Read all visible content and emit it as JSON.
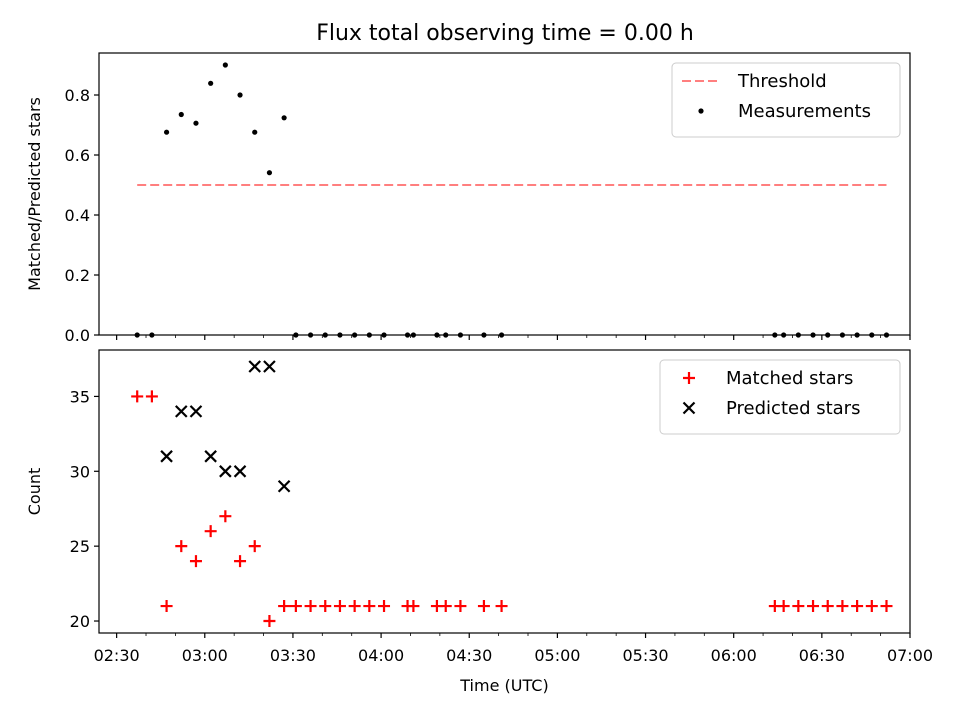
{
  "figure": {
    "title": "Flux total observing time = 0.00 h"
  },
  "chart_data": [
    {
      "type": "scatter",
      "ylabel": "Matched/Predicted stars",
      "xlabel": "",
      "xlim": [
        "02:24",
        "07:00"
      ],
      "ylim": [
        0,
        0.94
      ],
      "yticks": [
        0.0,
        0.2,
        0.4,
        0.6,
        0.8
      ],
      "ytick_labels": [
        "0.0",
        "0.2",
        "0.4",
        "0.6",
        "0.8"
      ],
      "xticks": [
        "02:30",
        "03:00",
        "03:30",
        "04:00",
        "04:30",
        "05:00",
        "05:30",
        "06:00",
        "06:30",
        "07:00"
      ],
      "show_xtick_labels": false,
      "legend_position": "upper right",
      "threshold": {
        "name": "Threshold",
        "color": "#ff7f7f",
        "style": "dashed",
        "value": 0.5,
        "x_range": [
          "02:37",
          "06:52"
        ]
      },
      "series": [
        {
          "name": "Measurements",
          "marker": "dot",
          "color": "#000000",
          "points": [
            [
              "02:37",
              0.0
            ],
            [
              "02:42",
              0.0
            ],
            [
              "02:47",
              0.676
            ],
            [
              "02:52",
              0.735
            ],
            [
              "02:57",
              0.706
            ],
            [
              "03:02",
              0.839
            ],
            [
              "03:07",
              0.9
            ],
            [
              "03:12",
              0.8
            ],
            [
              "03:17",
              0.676
            ],
            [
              "03:22",
              0.541
            ],
            [
              "03:27",
              0.724
            ],
            [
              "03:31",
              0.0
            ],
            [
              "03:36",
              0.0
            ],
            [
              "03:41",
              0.0
            ],
            [
              "03:46",
              0.0
            ],
            [
              "03:51",
              0.0
            ],
            [
              "03:56",
              0.0
            ],
            [
              "04:01",
              0.0
            ],
            [
              "04:09",
              0.0
            ],
            [
              "04:11",
              0.0
            ],
            [
              "04:19",
              0.0
            ],
            [
              "04:22",
              0.0
            ],
            [
              "04:27",
              0.0
            ],
            [
              "04:35",
              0.0
            ],
            [
              "04:41",
              0.0
            ],
            [
              "06:14",
              0.0
            ],
            [
              "06:17",
              0.0
            ],
            [
              "06:22",
              0.0
            ],
            [
              "06:27",
              0.0
            ],
            [
              "06:32",
              0.0
            ],
            [
              "06:37",
              0.0
            ],
            [
              "06:42",
              0.0
            ],
            [
              "06:47",
              0.0
            ],
            [
              "06:52",
              0.0
            ]
          ]
        }
      ]
    },
    {
      "type": "scatter",
      "ylabel": "Count",
      "xlabel": "Time (UTC)",
      "xlim": [
        "02:24",
        "07:00"
      ],
      "ylim": [
        19.2,
        38.1
      ],
      "yticks": [
        20,
        25,
        30,
        35
      ],
      "ytick_labels": [
        "20",
        "25",
        "30",
        "35"
      ],
      "xticks": [
        "02:30",
        "03:00",
        "03:30",
        "04:00",
        "04:30",
        "05:00",
        "05:30",
        "06:00",
        "06:30",
        "07:00"
      ],
      "xtick_labels": [
        "02:30",
        "03:00",
        "03:30",
        "04:00",
        "04:30",
        "05:00",
        "05:30",
        "06:00",
        "06:30",
        "07:00"
      ],
      "legend_position": "upper right",
      "series": [
        {
          "name": "Matched stars",
          "marker": "plus",
          "color": "#ff0000",
          "points": [
            [
              "02:37",
              35
            ],
            [
              "02:42",
              35
            ],
            [
              "02:47",
              21
            ],
            [
              "02:52",
              25
            ],
            [
              "02:57",
              24
            ],
            [
              "03:02",
              26
            ],
            [
              "03:07",
              27
            ],
            [
              "03:12",
              24
            ],
            [
              "03:17",
              25
            ],
            [
              "03:22",
              20
            ],
            [
              "03:27",
              21
            ],
            [
              "03:31",
              21
            ],
            [
              "03:36",
              21
            ],
            [
              "03:41",
              21
            ],
            [
              "03:46",
              21
            ],
            [
              "03:51",
              21
            ],
            [
              "03:56",
              21
            ],
            [
              "04:01",
              21
            ],
            [
              "04:09",
              21
            ],
            [
              "04:11",
              21
            ],
            [
              "04:19",
              21
            ],
            [
              "04:22",
              21
            ],
            [
              "04:27",
              21
            ],
            [
              "04:35",
              21
            ],
            [
              "04:41",
              21
            ],
            [
              "06:14",
              21
            ],
            [
              "06:17",
              21
            ],
            [
              "06:22",
              21
            ],
            [
              "06:27",
              21
            ],
            [
              "06:32",
              21
            ],
            [
              "06:37",
              21
            ],
            [
              "06:42",
              21
            ],
            [
              "06:47",
              21
            ],
            [
              "06:52",
              21
            ]
          ]
        },
        {
          "name": "Predicted stars",
          "marker": "x",
          "color": "#000000",
          "points": [
            [
              "02:47",
              31
            ],
            [
              "02:52",
              34
            ],
            [
              "02:57",
              34
            ],
            [
              "03:02",
              31
            ],
            [
              "03:07",
              30
            ],
            [
              "03:12",
              30
            ],
            [
              "03:17",
              37
            ],
            [
              "03:22",
              37
            ],
            [
              "03:27",
              29
            ]
          ]
        }
      ]
    }
  ]
}
